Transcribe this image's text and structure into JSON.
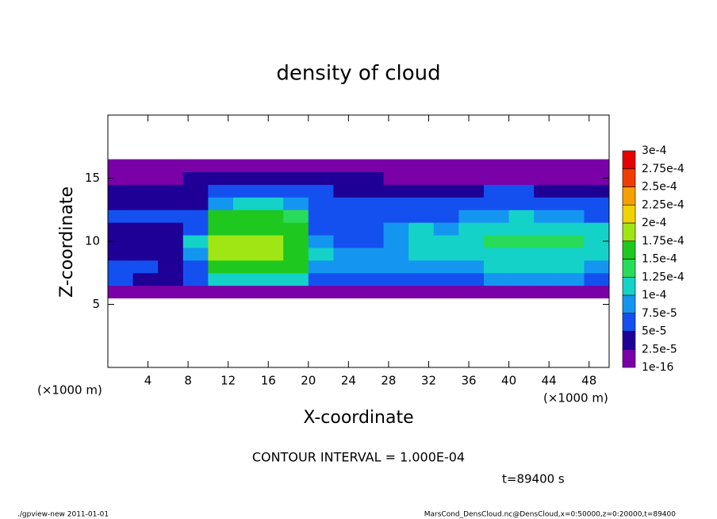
{
  "chart_data": {
    "type": "heatmap",
    "title": "density of cloud",
    "x_label": "X-coordinate",
    "y_label": "Z-coordinate",
    "x_unit_left": "(×1000 m)",
    "x_unit_right": "(×1000 m)",
    "contour_note": "CONTOUR INTERVAL = 1.000E-04",
    "time_note": "t=89400 s",
    "footer_left": "./gpview-new   2011-01-01",
    "footer_right": "MarsCond_DensCloud.nc@DensCloud,x=0:50000,z=0:20000,t=89400",
    "xlim": [
      0,
      50
    ],
    "ylim": [
      0,
      20
    ],
    "xticks": [
      4,
      8,
      12,
      16,
      20,
      24,
      28,
      32,
      36,
      40,
      44,
      48
    ],
    "yticks": [
      5,
      10,
      15
    ],
    "x": [
      1.25,
      3.75,
      6.25,
      8.75,
      11.25,
      13.75,
      16.25,
      18.75,
      21.25,
      23.75,
      26.25,
      28.75,
      31.25,
      33.75,
      36.25,
      38.75,
      41.25,
      43.75,
      46.25,
      48.75
    ],
    "y": [
      6,
      7,
      8,
      9,
      10,
      11,
      12,
      13,
      14,
      15,
      16
    ],
    "values": [
      [
        1e-05,
        1e-05,
        1e-05,
        1e-05,
        2e-05,
        2e-05,
        2e-05,
        2e-05,
        1e-05,
        1e-05,
        1e-05,
        1e-05,
        1e-05,
        1e-05,
        2e-05,
        2e-05,
        2e-05,
        2e-05,
        2e-05,
        1e-05
      ],
      [
        5e-05,
        4e-05,
        4e-05,
        5e-05,
        0.0001,
        0.00011,
        0.00011,
        0.0001,
        7e-05,
        6e-05,
        6e-05,
        7e-05,
        7e-05,
        7e-05,
        7e-05,
        8e-05,
        8e-05,
        8e-05,
        8e-05,
        7e-05
      ],
      [
        7e-05,
        5e-05,
        4e-05,
        6e-05,
        0.00016,
        0.00017,
        0.00017,
        0.00015,
        9e-05,
        8e-05,
        8e-05,
        9e-05,
        9e-05,
        9e-05,
        9e-05,
        0.0001,
        0.0001,
        0.0001,
        0.0001,
        9e-05
      ],
      [
        4e-05,
        3e-05,
        3e-05,
        8e-05,
        0.00018,
        0.00018,
        0.00018,
        0.00016,
        0.0001,
        8e-05,
        8e-05,
        9e-05,
        0.0001,
        0.00011,
        0.00011,
        0.00011,
        0.00012,
        0.00012,
        0.00011,
        0.0001
      ],
      [
        3e-05,
        3e-05,
        3e-05,
        0.0001,
        0.00018,
        0.00018,
        0.00018,
        0.00017,
        8e-05,
        6e-05,
        7e-05,
        9e-05,
        0.0001,
        0.0001,
        0.00011,
        0.00013,
        0.00013,
        0.00013,
        0.00013,
        0.00012
      ],
      [
        4e-05,
        4e-05,
        4e-05,
        6e-05,
        0.00017,
        0.00017,
        0.00017,
        0.00016,
        5e-05,
        5e-05,
        7e-05,
        9e-05,
        0.0001,
        9e-05,
        0.00011,
        0.00012,
        0.00012,
        0.00012,
        0.00012,
        0.00011
      ],
      [
        5e-05,
        5e-05,
        5e-05,
        5e-05,
        0.00015,
        0.00016,
        0.00016,
        0.00014,
        6e-05,
        6e-05,
        6e-05,
        6e-05,
        6e-05,
        7e-05,
        9e-05,
        9e-05,
        0.0001,
        9e-05,
        8e-05,
        7e-05
      ],
      [
        4e-05,
        4e-05,
        4e-05,
        4e-05,
        8e-05,
        0.0001,
        0.0001,
        8e-05,
        5e-05,
        5e-05,
        5e-05,
        5e-05,
        5e-05,
        6e-05,
        6e-05,
        7e-05,
        7e-05,
        6e-05,
        6e-05,
        5e-05
      ],
      [
        3e-05,
        4e-05,
        4e-05,
        4e-05,
        5e-05,
        5e-05,
        5e-05,
        5e-05,
        5e-05,
        4e-05,
        4e-05,
        4e-05,
        4e-05,
        4e-05,
        4e-05,
        5e-05,
        5e-05,
        4e-05,
        4e-05,
        4e-05
      ],
      [
        2e-05,
        2e-05,
        2e-05,
        3e-05,
        3e-05,
        3e-05,
        3e-05,
        3e-05,
        3e-05,
        3e-05,
        3e-05,
        2e-05,
        2e-05,
        2e-05,
        2e-05,
        2e-05,
        2e-05,
        2e-05,
        2e-05,
        2e-05
      ],
      [
        1e-05,
        1e-05,
        1e-05,
        1e-05,
        1e-05,
        1e-05,
        1e-05,
        1e-05,
        1e-05,
        1e-05,
        1e-05,
        1e-05,
        1e-05,
        1e-05,
        1e-05,
        1e-05,
        1e-05,
        1e-05,
        1e-05,
        1e-05
      ]
    ],
    "levels": [
      {
        "value": 1e-16,
        "label": "1e-16"
      },
      {
        "value": 2.5e-05,
        "label": "2.5e-5"
      },
      {
        "value": 5e-05,
        "label": "5e-5"
      },
      {
        "value": 7.5e-05,
        "label": "7.5e-5"
      },
      {
        "value": 0.0001,
        "label": "1e-4"
      },
      {
        "value": 0.000125,
        "label": "1.25e-4"
      },
      {
        "value": 0.00015,
        "label": "1.5e-4"
      },
      {
        "value": 0.000175,
        "label": "1.75e-4"
      },
      {
        "value": 0.0002,
        "label": "2e-4"
      },
      {
        "value": 0.000225,
        "label": "2.25e-4"
      },
      {
        "value": 0.00025,
        "label": "2.5e-4"
      },
      {
        "value": 0.000275,
        "label": "2.75e-4"
      },
      {
        "value": 0.0003,
        "label": "3e-4"
      }
    ],
    "level_colors": [
      "#7a00a8",
      "#1e0096",
      "#1450f0",
      "#1496f0",
      "#14d2c8",
      "#28dc5a",
      "#1ec81e",
      "#a0e614",
      "#f0d200",
      "#f5a000",
      "#f03c00",
      "#e60000",
      "#f08080"
    ]
  }
}
